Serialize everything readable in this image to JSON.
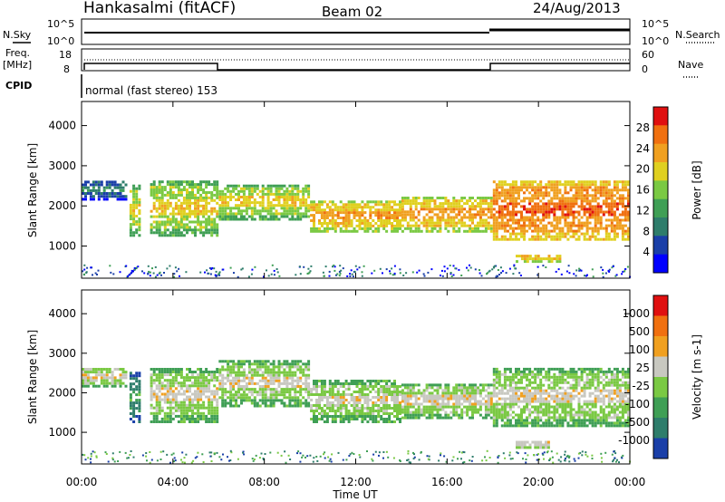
{
  "header": {
    "station": "Hankasalmi (fitACF)",
    "beam": "Beam 02",
    "date": "24/Aug/2013"
  },
  "panels": {
    "nsky": {
      "left_label": "N.Sky",
      "right_label": "N.Search",
      "left_ticks": [
        "10^5",
        "10^0"
      ],
      "right_ticks": [
        "10^5",
        "10^0"
      ]
    },
    "freq": {
      "left_label_1": "Freq.",
      "left_label_2": "[MHz]",
      "left_ticks": [
        "18",
        "8"
      ],
      "right_label": "Nave",
      "right_ticks": [
        "60",
        "0"
      ]
    },
    "cpid": {
      "label": "CPID",
      "mode_text": "normal (fast stereo) 153"
    }
  },
  "colors": {
    "power": [
      "#0000ff",
      "#1a3fa8",
      "#2e7d6b",
      "#3f9f55",
      "#7ac943",
      "#e0d020",
      "#f0a020",
      "#f07010",
      "#e01010"
    ],
    "velocity": [
      "#1a3fa8",
      "#2e7d6b",
      "#3f9f55",
      "#7ac943",
      "#c8c8c0",
      "#f0a020",
      "#f07010",
      "#e01010"
    ],
    "ground_scatter": "#c8c8c0"
  },
  "chart_data": [
    {
      "type": "heatmap",
      "name": "power",
      "ylabel": "Slant Range [km]",
      "yticks": [
        "4000",
        "3000",
        "2000",
        "1000"
      ],
      "ylim": [
        200,
        4600
      ],
      "xlim": [
        0,
        24
      ],
      "colorbar": {
        "label": "Power [dB]",
        "ticks": [
          "28",
          "24",
          "20",
          "16",
          "12",
          "8",
          "4"
        ]
      },
      "echo_bands": [
        {
          "t0": 0.0,
          "t1": 2.0,
          "r0": 2200,
          "r1": 2700,
          "level": 2
        },
        {
          "t0": 2.1,
          "t1": 2.6,
          "r0": 1300,
          "r1": 2600,
          "level": 5
        },
        {
          "t0": 3.0,
          "t1": 6.0,
          "r0": 1300,
          "r1": 2700,
          "level": 5
        },
        {
          "t0": 6.0,
          "t1": 10.0,
          "r0": 1700,
          "r1": 2600,
          "level": 5
        },
        {
          "t0": 10.0,
          "t1": 14.0,
          "r0": 1400,
          "r1": 2200,
          "level": 6
        },
        {
          "t0": 14.0,
          "t1": 18.0,
          "r0": 1400,
          "r1": 2300,
          "level": 6
        },
        {
          "t0": 18.0,
          "t1": 24.0,
          "r0": 1200,
          "r1": 2700,
          "level": 7
        },
        {
          "t0": 19.0,
          "t1": 21.0,
          "r0": 650,
          "r1": 850,
          "level": 6
        }
      ]
    },
    {
      "type": "heatmap",
      "name": "velocity",
      "ylabel": "Slant Range [km]",
      "yticks": [
        "4000",
        "3000",
        "2000",
        "1000"
      ],
      "ylim": [
        200,
        4600
      ],
      "xlim": [
        0,
        24
      ],
      "xlabel": "Time UT",
      "xticks": [
        "00:00",
        "04:00",
        "08:00",
        "12:00",
        "16:00",
        "20:00",
        "00:00"
      ],
      "colorbar": {
        "label": "Velocity [m s-1]",
        "ticks": [
          "1000",
          "500",
          "100",
          "25",
          "-25",
          "-100",
          "-500",
          "-1000"
        ]
      },
      "echo_bands": [
        {
          "t0": 0.0,
          "t1": 2.0,
          "r0": 2200,
          "r1": 2700,
          "level": 4
        },
        {
          "t0": 2.1,
          "t1": 2.6,
          "r0": 1300,
          "r1": 2600,
          "level": 2
        },
        {
          "t0": 3.0,
          "t1": 6.0,
          "r0": 1300,
          "r1": 2700,
          "level": 4
        },
        {
          "t0": 6.0,
          "t1": 10.0,
          "r0": 1700,
          "r1": 2900,
          "level": 4
        },
        {
          "t0": 10.0,
          "t1": 14.0,
          "r0": 1300,
          "r1": 2400,
          "level": 4
        },
        {
          "t0": 14.0,
          "t1": 18.0,
          "r0": 1400,
          "r1": 2300,
          "level": 4
        },
        {
          "t0": 18.0,
          "t1": 24.0,
          "r0": 1200,
          "r1": 2700,
          "level": 4
        },
        {
          "t0": 19.0,
          "t1": 20.5,
          "r0": 650,
          "r1": 850,
          "level": 5
        }
      ]
    }
  ]
}
